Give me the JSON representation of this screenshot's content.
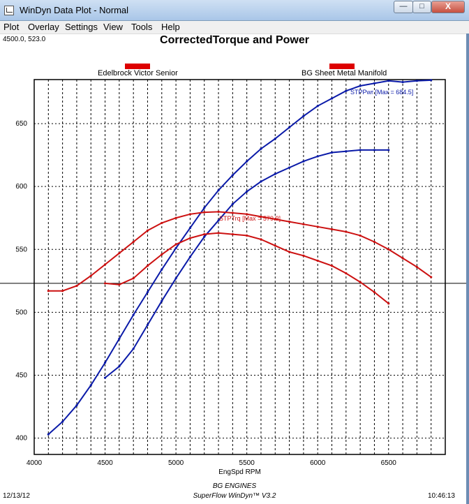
{
  "window": {
    "title": "WinDyn Data Plot - Normal",
    "min_label": "—",
    "max_label": "□",
    "close_label": "X"
  },
  "menu": [
    "Plot",
    "Overlay",
    "Settings",
    "View",
    "Tools",
    "Help"
  ],
  "cursor_readout": "4500.0, 523.0",
  "footer": {
    "date": "12/13/12",
    "time": "10:46:13",
    "company": "BG ENGINES",
    "software": "SuperFlow WinDyn™ V3.2"
  },
  "colors": {
    "torque": "#cc1111",
    "power": "#0a1aa8",
    "legend": "#dd0000"
  },
  "chart_data": {
    "type": "line",
    "title": "CorrectedTorque and Power",
    "xlabel": "EngSpd RPM",
    "ylabel": "",
    "xlim": [
      4000,
      6900
    ],
    "ylim": [
      387,
      685
    ],
    "xticks": [
      4000,
      4500,
      5000,
      5500,
      6000,
      6500
    ],
    "yticks": [
      400,
      450,
      500,
      550,
      600,
      650
    ],
    "grid": true,
    "legend_position": "top",
    "cursor_y": 523,
    "legend": [
      "Edelbrock Victor Senior",
      "BG Sheet Metal Manifold"
    ],
    "series": [
      {
        "name": "STPPwr",
        "run": "BG Sheet Metal Manifold",
        "color": "#0a1aa8",
        "x": [
          4100,
          4200,
          4300,
          4400,
          4500,
          4600,
          4700,
          4800,
          4900,
          5000,
          5100,
          5200,
          5300,
          5400,
          5500,
          5600,
          5700,
          5800,
          5900,
          6000,
          6100,
          6200,
          6300,
          6400,
          6500,
          6600,
          6700,
          6800
        ],
        "y": [
          403,
          413,
          426,
          442,
          460,
          479,
          498,
          516,
          534,
          551,
          567,
          583,
          597,
          609,
          620,
          630,
          638,
          647,
          656,
          664,
          670,
          676,
          680,
          682,
          684,
          683,
          684,
          684.5
        ]
      },
      {
        "name": "STPPwr",
        "run": "Edelbrock Victor Senior",
        "color": "#0a1aa8",
        "x": [
          4500,
          4600,
          4700,
          4800,
          4900,
          5000,
          5100,
          5200,
          5300,
          5400,
          5500,
          5600,
          5700,
          5800,
          5900,
          6000,
          6100,
          6200,
          6300,
          6400,
          6500
        ],
        "y": [
          448,
          457,
          471,
          490,
          509,
          527,
          544,
          560,
          573,
          586,
          596,
          604,
          610,
          615,
          620,
          624,
          627,
          628,
          629,
          629,
          629
        ]
      },
      {
        "name": "STPTrq",
        "run": "BG Sheet Metal Manifold",
        "color": "#cc1111",
        "x": [
          4100,
          4200,
          4300,
          4400,
          4500,
          4600,
          4700,
          4800,
          4900,
          5000,
          5100,
          5200,
          5300,
          5400,
          5500,
          5600,
          5700,
          5800,
          5900,
          6000,
          6100,
          6200,
          6300,
          6400,
          6500,
          6600,
          6700,
          6800
        ],
        "y": [
          517,
          517,
          521,
          529,
          538,
          547,
          556,
          565,
          571,
          575,
          578,
          579.5,
          579.9,
          579,
          578,
          576,
          574,
          572,
          570,
          568,
          566,
          564,
          561,
          556,
          550,
          543,
          536,
          528
        ]
      },
      {
        "name": "STPTrq",
        "run": "Edelbrock Victor Senior",
        "color": "#cc1111",
        "x": [
          4500,
          4600,
          4700,
          4800,
          4900,
          5000,
          5100,
          5200,
          5300,
          5400,
          5500,
          5600,
          5700,
          5800,
          5900,
          6000,
          6100,
          6200,
          6300,
          6400,
          6500
        ],
        "y": [
          523,
          522,
          527,
          537,
          546,
          554,
          559,
          562,
          563,
          562,
          561,
          558,
          553,
          548,
          545,
          541,
          537,
          531,
          524,
          516,
          507
        ]
      }
    ],
    "annotations": [
      {
        "text": "STPPwr [Max = 684.5]",
        "series": "STPPwr",
        "color": "#0a1aa8"
      },
      {
        "text": "STPTrq [Max = 579.9]",
        "series": "STPTrq",
        "color": "#cc1111"
      }
    ]
  }
}
